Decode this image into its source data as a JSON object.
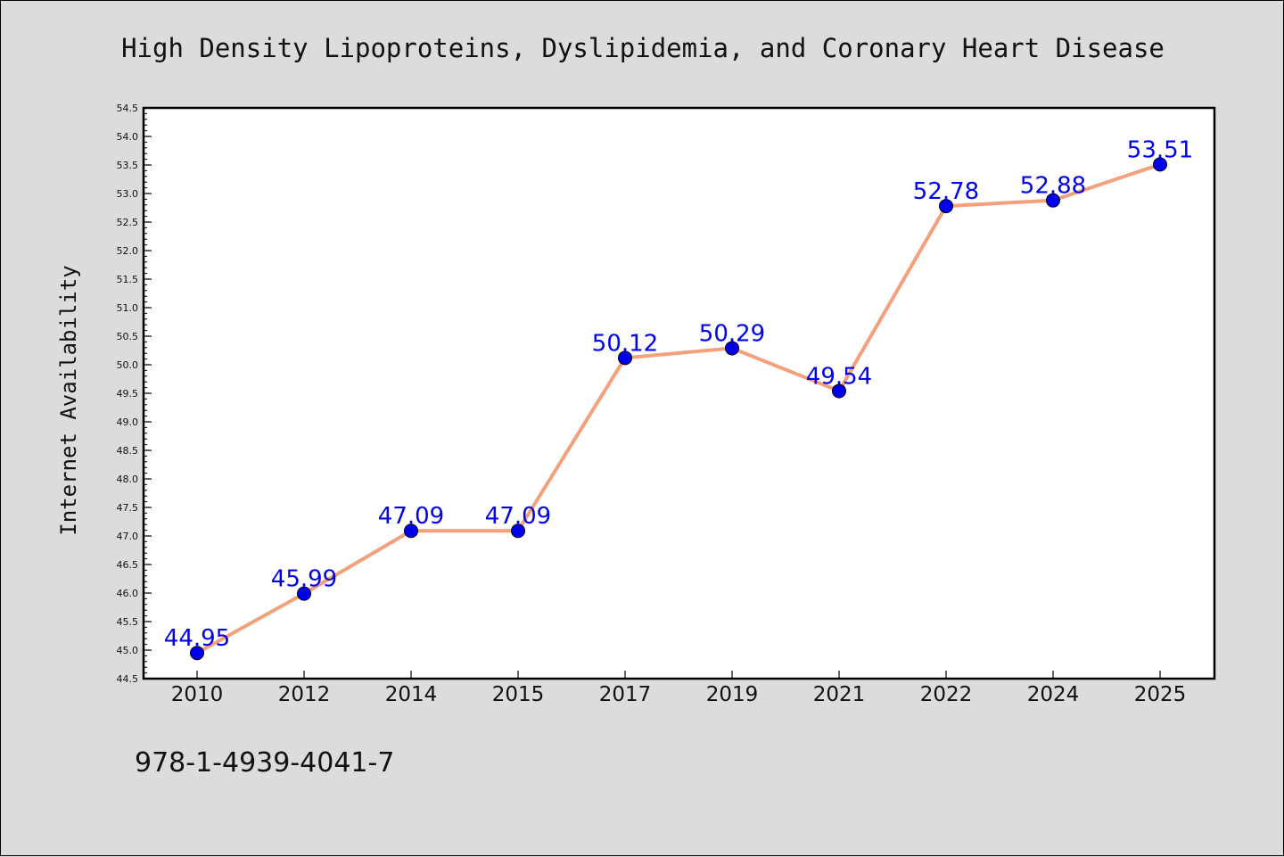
{
  "chart_data": {
    "type": "line",
    "title": "High Density Lipoproteins, Dyslipidemia, and Coronary Heart Disease",
    "xlabel": "",
    "ylabel": "Internet Availability",
    "categories": [
      "2010",
      "2012",
      "2014",
      "2015",
      "2017",
      "2019",
      "2021",
      "2022",
      "2024",
      "2025"
    ],
    "series": [
      {
        "values": [
          44.95,
          45.99,
          47.09,
          47.09,
          50.12,
          50.29,
          49.54,
          52.78,
          52.88,
          53.51
        ],
        "labels": [
          "44.95",
          "45.99",
          "47.09",
          "47.09",
          "50.12",
          "50.29",
          "49.54",
          "52.78",
          "52.88",
          "53.51"
        ],
        "line_color": "#f4a07a",
        "marker_color": "#0000ee"
      }
    ],
    "ylim": [
      44.5,
      54.5
    ],
    "yticks": [
      "44.5",
      "45.0",
      "45.5",
      "46.0",
      "46.5",
      "47.0",
      "47.5",
      "48.0",
      "48.5",
      "49.0",
      "49.5",
      "50.0",
      "50.5",
      "51.0",
      "51.5",
      "52.0",
      "52.5",
      "53.0",
      "53.5",
      "54.0",
      "54.5"
    ],
    "grid": false,
    "label_color": "#0000ee"
  },
  "footer": {
    "isbn": "978-1-4939-4041-7"
  }
}
